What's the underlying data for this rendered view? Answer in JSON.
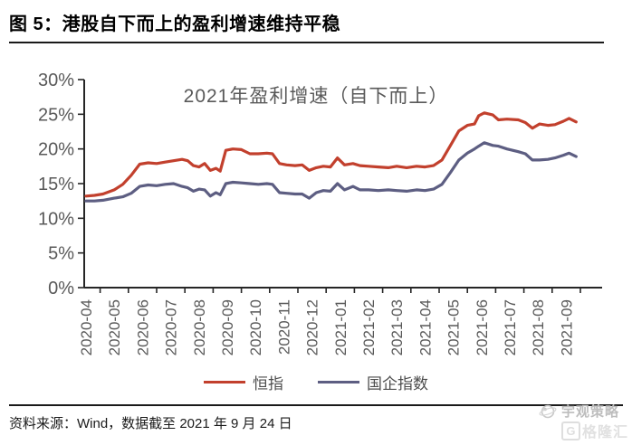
{
  "figure": {
    "title": "图 5：港股自下而上的盈利增速维持平稳",
    "source_note": "资料来源：Wind，数据截至 2021 年 9 月 24 日",
    "watermark": {
      "primary": "宇观策略",
      "logo_letter": "G",
      "secondary": "格隆汇"
    }
  },
  "colors": {
    "accent_red": "#c2402d",
    "accent_navy": "#5d5e82",
    "axis_text": "#595959",
    "axis_line": "#262626",
    "rule": "#1a1a1a"
  },
  "chart_data": {
    "type": "line",
    "title": "2021年盈利增速（自下而上）",
    "x_tick_labels": [
      "2020-04",
      "2020-05",
      "2020-06",
      "2020-07",
      "2020-08",
      "2020-09",
      "2020-10",
      "2020-11",
      "2020-12",
      "2021-01",
      "2021-02",
      "2021-03",
      "2021-04",
      "2021-05",
      "2021-06",
      "2021-07",
      "2021-08",
      "2021-09"
    ],
    "x_unit_note": "x values below are month offsets, 0 = 2020-04, 17 = 2021-09",
    "y_ticks": [
      0,
      5,
      10,
      15,
      20,
      25,
      30
    ],
    "y_tick_labels": [
      "0%",
      "5%",
      "10%",
      "15%",
      "20%",
      "25%",
      "30%"
    ],
    "ylim": [
      0,
      30
    ],
    "grid": false,
    "legend_position": "bottom",
    "series": [
      {
        "name": "恒指",
        "key": "hang-seng",
        "color": "#c2402d",
        "points": [
          [
            0,
            13.2
          ],
          [
            0.3,
            13.3
          ],
          [
            0.6,
            13.5
          ],
          [
            1.0,
            14.1
          ],
          [
            1.3,
            14.9
          ],
          [
            1.6,
            16.2
          ],
          [
            1.9,
            17.8
          ],
          [
            2.2,
            18.0
          ],
          [
            2.5,
            17.9
          ],
          [
            2.8,
            18.1
          ],
          [
            3.1,
            18.3
          ],
          [
            3.4,
            18.5
          ],
          [
            3.6,
            18.3
          ],
          [
            3.8,
            17.6
          ],
          [
            4.0,
            17.4
          ],
          [
            4.2,
            17.9
          ],
          [
            4.4,
            16.9
          ],
          [
            4.6,
            17.2
          ],
          [
            4.75,
            16.8
          ],
          [
            4.95,
            19.8
          ],
          [
            5.2,
            20.0
          ],
          [
            5.5,
            19.9
          ],
          [
            5.8,
            19.3
          ],
          [
            6.1,
            19.3
          ],
          [
            6.4,
            19.4
          ],
          [
            6.6,
            19.3
          ],
          [
            6.85,
            17.9
          ],
          [
            7.1,
            17.7
          ],
          [
            7.4,
            17.6
          ],
          [
            7.65,
            17.7
          ],
          [
            7.9,
            16.9
          ],
          [
            8.15,
            17.3
          ],
          [
            8.4,
            17.5
          ],
          [
            8.65,
            17.4
          ],
          [
            8.9,
            18.7
          ],
          [
            9.15,
            17.7
          ],
          [
            9.45,
            17.9
          ],
          [
            9.7,
            17.6
          ],
          [
            10.0,
            17.5
          ],
          [
            10.35,
            17.4
          ],
          [
            10.7,
            17.3
          ],
          [
            11.0,
            17.5
          ],
          [
            11.35,
            17.3
          ],
          [
            11.7,
            17.5
          ],
          [
            12.0,
            17.4
          ],
          [
            12.3,
            17.6
          ],
          [
            12.6,
            18.4
          ],
          [
            12.9,
            20.5
          ],
          [
            13.2,
            22.6
          ],
          [
            13.5,
            23.4
          ],
          [
            13.75,
            23.6
          ],
          [
            13.9,
            24.8
          ],
          [
            14.1,
            25.2
          ],
          [
            14.4,
            24.9
          ],
          [
            14.6,
            24.2
          ],
          [
            14.9,
            24.3
          ],
          [
            15.3,
            24.2
          ],
          [
            15.55,
            23.8
          ],
          [
            15.8,
            23.0
          ],
          [
            16.05,
            23.6
          ],
          [
            16.35,
            23.4
          ],
          [
            16.6,
            23.5
          ],
          [
            16.9,
            24.0
          ],
          [
            17.1,
            24.4
          ],
          [
            17.35,
            23.9
          ]
        ]
      },
      {
        "name": "国企指数",
        "key": "soe-index",
        "color": "#5d5e82",
        "points": [
          [
            0,
            12.5
          ],
          [
            0.3,
            12.5
          ],
          [
            0.6,
            12.6
          ],
          [
            1.0,
            12.9
          ],
          [
            1.3,
            13.1
          ],
          [
            1.6,
            13.6
          ],
          [
            1.9,
            14.6
          ],
          [
            2.2,
            14.8
          ],
          [
            2.5,
            14.7
          ],
          [
            2.8,
            14.9
          ],
          [
            3.1,
            15.0
          ],
          [
            3.4,
            14.6
          ],
          [
            3.6,
            14.4
          ],
          [
            3.8,
            13.9
          ],
          [
            4.0,
            14.2
          ],
          [
            4.2,
            14.1
          ],
          [
            4.4,
            13.2
          ],
          [
            4.6,
            13.7
          ],
          [
            4.75,
            13.4
          ],
          [
            4.95,
            15.0
          ],
          [
            5.2,
            15.2
          ],
          [
            5.5,
            15.1
          ],
          [
            5.8,
            15.0
          ],
          [
            6.1,
            14.9
          ],
          [
            6.4,
            15.0
          ],
          [
            6.6,
            14.9
          ],
          [
            6.85,
            13.7
          ],
          [
            7.1,
            13.6
          ],
          [
            7.4,
            13.5
          ],
          [
            7.65,
            13.5
          ],
          [
            7.9,
            12.9
          ],
          [
            8.15,
            13.7
          ],
          [
            8.4,
            14.0
          ],
          [
            8.65,
            13.9
          ],
          [
            8.9,
            15.0
          ],
          [
            9.15,
            14.1
          ],
          [
            9.45,
            14.6
          ],
          [
            9.7,
            14.1
          ],
          [
            10.0,
            14.1
          ],
          [
            10.35,
            14.0
          ],
          [
            10.7,
            14.1
          ],
          [
            11.0,
            14.0
          ],
          [
            11.35,
            13.9
          ],
          [
            11.7,
            14.1
          ],
          [
            12.0,
            14.0
          ],
          [
            12.3,
            14.2
          ],
          [
            12.6,
            14.9
          ],
          [
            12.9,
            16.6
          ],
          [
            13.2,
            18.4
          ],
          [
            13.5,
            19.4
          ],
          [
            13.75,
            20.0
          ],
          [
            13.9,
            20.4
          ],
          [
            14.1,
            20.9
          ],
          [
            14.4,
            20.5
          ],
          [
            14.6,
            20.4
          ],
          [
            14.9,
            20.0
          ],
          [
            15.3,
            19.6
          ],
          [
            15.55,
            19.3
          ],
          [
            15.8,
            18.4
          ],
          [
            16.05,
            18.4
          ],
          [
            16.35,
            18.5
          ],
          [
            16.6,
            18.7
          ],
          [
            16.9,
            19.1
          ],
          [
            17.1,
            19.4
          ],
          [
            17.35,
            18.9
          ]
        ]
      }
    ]
  }
}
